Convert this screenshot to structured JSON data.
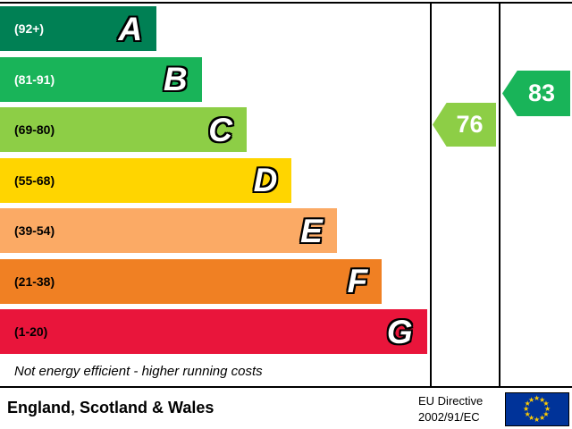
{
  "chart_data": {
    "type": "epc-energy-efficiency-rating",
    "bands": [
      {
        "letter": "A",
        "range": "(92+)",
        "color": "#008054",
        "text_color": "#ffffff",
        "width_pct": 36.5
      },
      {
        "letter": "B",
        "range": "(81-91)",
        "color": "#19b459",
        "text_color": "#ffffff",
        "width_pct": 47
      },
      {
        "letter": "C",
        "range": "(69-80)",
        "color": "#8dce46",
        "text_color": "#000000",
        "width_pct": 57.5
      },
      {
        "letter": "D",
        "range": "(55-68)",
        "color": "#ffd500",
        "text_color": "#000000",
        "width_pct": 68
      },
      {
        "letter": "E",
        "range": "(39-54)",
        "color": "#fbaa65",
        "text_color": "#000000",
        "width_pct": 78.5
      },
      {
        "letter": "F",
        "range": "(21-38)",
        "color": "#f08023",
        "text_color": "#000000",
        "width_pct": 89
      },
      {
        "letter": "G",
        "range": "(1-20)",
        "color": "#e9153b",
        "text_color": "#000000",
        "width_pct": 99.5
      }
    ],
    "current": {
      "value": "76",
      "band": "C",
      "color": "#8dce46"
    },
    "potential": {
      "value": "83",
      "band": "B",
      "color": "#19b459"
    },
    "caption": "Not energy efficient - higher running costs",
    "footer": {
      "region": "England, Scotland & Wales",
      "directive_line1": "EU Directive",
      "directive_line2": "2002/91/EC",
      "eu_flag_colors": {
        "background": "#003399",
        "stars": "#ffcc00"
      }
    }
  }
}
